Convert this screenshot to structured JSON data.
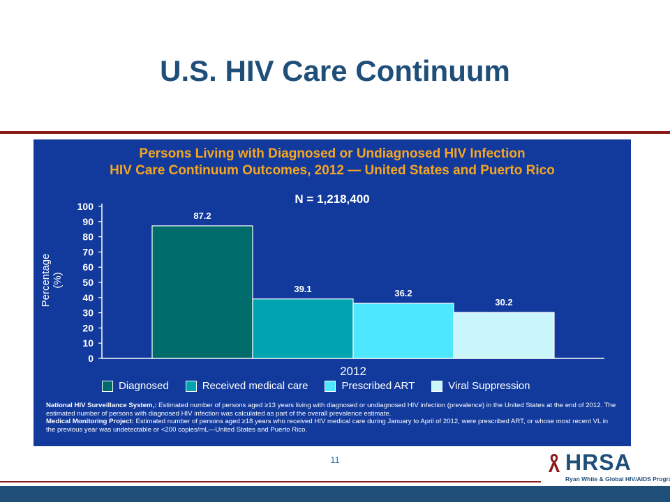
{
  "slide": {
    "title": "U.S. HIV Care Continuum",
    "page_number": "11"
  },
  "panel": {
    "title_line1": "Persons Living with Diagnosed or Undiagnosed HIV Infection",
    "title_line2": "HIV Care Continuum Outcomes, 2012 — United States and Puerto Rico",
    "n_label": "N = 1,218,400",
    "note1_bold": "National HIV Surveillance System,:",
    "note1_text": " Estimated number of persons aged ≥13 years living with diagnosed or undiagnosed HIV infection (prevalence) in the United States at the end of 2012. The estimated number of persons with diagnosed HIV infection was calculated as part of the overall prevalence estimate.",
    "note2_bold": "Medical Monitoring Project:",
    "note2_text": " Estimated number of persons aged ≥18 years who received HIV medical care during January to April of 2012, were prescribed ART, or whose most recent VL in the previous year was undetectable or <200 copies/mL—United States and Puerto Rico."
  },
  "logo": {
    "name": "HRSA",
    "subtitle": "Ryan White & Global HIV/AIDS Programs"
  },
  "colors": {
    "title": "#1f4e79",
    "panel_bg": "#123a9c",
    "panel_title": "#f5a623",
    "rule": "#8b1a1a",
    "footer": "#1f4e79"
  },
  "chart_data": {
    "type": "bar",
    "categories": [
      "2012"
    ],
    "xlabel": "2012",
    "ylabel": "Percentage (%)",
    "ylim": [
      0,
      100
    ],
    "yticks": [
      0,
      10,
      20,
      30,
      40,
      50,
      60,
      70,
      80,
      90,
      100
    ],
    "grid": false,
    "legend_position": "bottom",
    "series": [
      {
        "name": "Diagnosed",
        "values": [
          87.2
        ],
        "label": "87.2",
        "color": "#006b6b"
      },
      {
        "name": "Received medical care",
        "values": [
          39.1
        ],
        "label": "39.1",
        "color": "#00a3b0"
      },
      {
        "name": "Prescribed ART",
        "values": [
          36.2
        ],
        "label": "36.2",
        "color": "#4de8ff"
      },
      {
        "name": "Viral Suppression",
        "values": [
          30.2
        ],
        "label": "30.2",
        "color": "#c8f6fb"
      }
    ]
  }
}
